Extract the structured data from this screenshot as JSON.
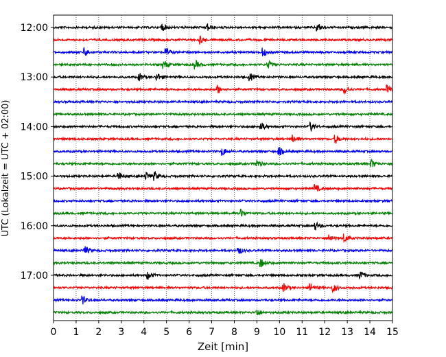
{
  "chart_data": {
    "type": "line",
    "title": "",
    "xlabel": "Zeit  [min]",
    "ylabel": "UTC (Lokalzeit = UTC + 02:00)",
    "xlim": [
      0,
      15
    ],
    "x_ticks": [
      0,
      1,
      2,
      3,
      4,
      5,
      6,
      7,
      8,
      9,
      10,
      11,
      12,
      13,
      14,
      15
    ],
    "x_tick_labels": [
      "0",
      "1",
      "2",
      "3",
      "4",
      "5",
      "6",
      "7",
      "8",
      "9",
      "10",
      "11",
      "12",
      "13",
      "14",
      "15"
    ],
    "y_tick_labels": [
      "12:00",
      "13:00",
      "14:00",
      "15:00",
      "16:00",
      "17:00"
    ],
    "grid": {
      "vertical": true,
      "style": "dotted"
    },
    "trace_colors": [
      "#000000",
      "#ff0000",
      "#0000ff",
      "#008000"
    ],
    "traces": [
      {
        "start": "12:00",
        "events_min": [
          4.8,
          6.8,
          11.7
        ]
      },
      {
        "start": "12:15",
        "events_min": [
          6.5
        ]
      },
      {
        "start": "12:30",
        "events_min": [
          1.4,
          5.0,
          9.3
        ]
      },
      {
        "start": "12:45",
        "events_min": [
          4.9,
          6.3,
          9.5
        ]
      },
      {
        "start": "13:00",
        "events_min": [
          3.8,
          4.6,
          8.7
        ]
      },
      {
        "start": "13:15",
        "events_min": [
          7.3,
          12.9,
          14.8
        ]
      },
      {
        "start": "13:30",
        "events_min": []
      },
      {
        "start": "13:45",
        "events_min": []
      },
      {
        "start": "14:00",
        "events_min": [
          9.2,
          11.4
        ]
      },
      {
        "start": "14:15",
        "events_min": [
          10.6,
          12.5
        ]
      },
      {
        "start": "14:30",
        "events_min": [
          7.5,
          10.0
        ]
      },
      {
        "start": "14:45",
        "events_min": [
          9.0,
          14.1
        ]
      },
      {
        "start": "15:00",
        "events_min": [
          2.9,
          4.1,
          4.5
        ]
      },
      {
        "start": "15:15",
        "events_min": [
          11.6
        ]
      },
      {
        "start": "15:30",
        "events_min": []
      },
      {
        "start": "15:45",
        "events_min": [
          8.3
        ]
      },
      {
        "start": "16:00",
        "events_min": [
          11.6
        ]
      },
      {
        "start": "16:15",
        "events_min": [
          12.2,
          12.9
        ]
      },
      {
        "start": "16:30",
        "events_min": [
          1.4,
          8.2
        ]
      },
      {
        "start": "16:45",
        "events_min": [
          9.2
        ]
      },
      {
        "start": "17:00",
        "events_min": [
          4.2,
          13.6
        ]
      },
      {
        "start": "17:15",
        "events_min": [
          10.2,
          11.4,
          12.4
        ]
      },
      {
        "start": "17:30",
        "events_min": [
          1.3
        ]
      },
      {
        "start": "17:45",
        "events_min": [
          9.0
        ]
      }
    ]
  }
}
